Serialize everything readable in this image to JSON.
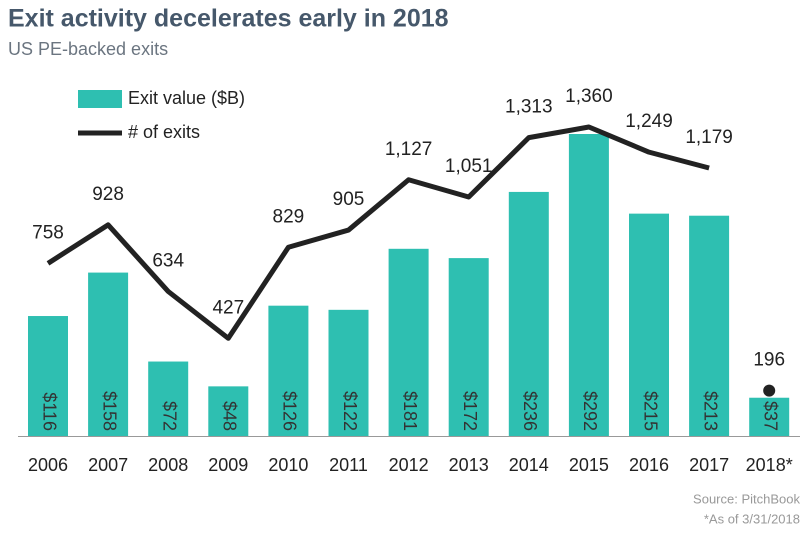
{
  "chart_data": {
    "type": "bar",
    "title": "Exit activity decelerates early in 2018",
    "subtitle": "US PE-backed exits",
    "categories": [
      "2006",
      "2007",
      "2008",
      "2009",
      "2010",
      "2011",
      "2012",
      "2013",
      "2014",
      "2015",
      "2016",
      "2017",
      "2018*"
    ],
    "series": [
      {
        "name": "Exit value ($B)",
        "type": "bar",
        "color": "#2ebfb1",
        "values": [
          116,
          158,
          72,
          48,
          126,
          122,
          181,
          172,
          236,
          292,
          215,
          213,
          37
        ],
        "value_labels": [
          "$116",
          "$158",
          "$72",
          "$48",
          "$126",
          "$122",
          "$181",
          "$172",
          "$236",
          "$292",
          "$215",
          "$213",
          "$37"
        ]
      },
      {
        "name": "# of exits",
        "type": "line",
        "color": "#222222",
        "values": [
          758,
          928,
          634,
          427,
          829,
          905,
          1127,
          1051,
          1313,
          1360,
          1249,
          1179,
          196
        ],
        "value_labels": [
          "758",
          "928",
          "634",
          "427",
          "829",
          "905",
          "1,127",
          "1,051",
          "1,313",
          "1,360",
          "1,249",
          "1,179",
          "196"
        ]
      }
    ],
    "last_point_separate": true,
    "source": "Source: PitchBook",
    "footnote": "*As of 3/31/2018"
  }
}
